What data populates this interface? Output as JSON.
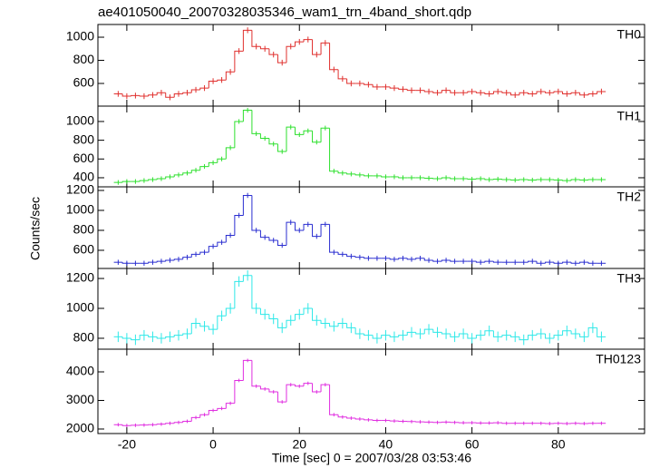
{
  "chart_data": {
    "type": "step",
    "title": "ae401050040_20070328035346_wam1_trn_4band_short.qdp",
    "xlabel": "Time [sec] 0 = 2007/03/28 03:53:46",
    "ylabel": "Counts/sec",
    "x": [
      -22,
      -20,
      -18,
      -16,
      -14,
      -12,
      -10,
      -8,
      -6,
      -4,
      -2,
      0,
      2,
      4,
      6,
      8,
      10,
      12,
      14,
      16,
      18,
      20,
      22,
      24,
      26,
      28,
      30,
      32,
      34,
      36,
      38,
      40,
      42,
      44,
      46,
      48,
      50,
      52,
      54,
      56,
      58,
      60,
      62,
      64,
      66,
      68,
      70,
      72,
      74,
      76,
      78,
      80,
      82,
      84,
      86,
      88,
      90
    ],
    "xlim": [
      -26.7,
      100
    ],
    "xticks": [
      -20,
      0,
      20,
      40,
      60,
      80
    ],
    "panels": [
      {
        "name": "TH0",
        "color": "#e0302e",
        "error": 25,
        "ylim": [
          404,
          1110
        ],
        "yticks": [
          600,
          800,
          1000
        ],
        "values": [
          510,
          490,
          495,
          490,
          500,
          520,
          480,
          510,
          520,
          545,
          560,
          620,
          630,
          700,
          880,
          1060,
          920,
          900,
          850,
          780,
          920,
          960,
          980,
          850,
          950,
          720,
          640,
          600,
          600,
          590,
          570,
          570,
          560,
          550,
          540,
          540,
          530,
          520,
          540,
          520,
          520,
          530,
          520,
          510,
          530,
          520,
          500,
          520,
          510,
          530,
          520,
          530,
          510,
          520,
          500,
          510,
          530
        ]
      },
      {
        "name": "TH1",
        "color": "#2ee02e",
        "error": 25,
        "ylim": [
          303,
          1164
        ],
        "yticks": [
          400,
          600,
          800,
          1000
        ],
        "values": [
          350,
          360,
          360,
          370,
          380,
          390,
          410,
          430,
          450,
          480,
          520,
          560,
          600,
          720,
          1000,
          1120,
          870,
          820,
          760,
          680,
          940,
          860,
          900,
          780,
          930,
          470,
          450,
          440,
          430,
          420,
          420,
          410,
          410,
          400,
          400,
          400,
          395,
          390,
          400,
          390,
          390,
          385,
          390,
          380,
          385,
          380,
          375,
          380,
          375,
          380,
          380,
          375,
          370,
          380,
          375,
          380,
          380
        ]
      },
      {
        "name": "TH2",
        "color": "#2a2ed0",
        "error": 25,
        "ylim": [
          418,
          1236
        ],
        "yticks": [
          600,
          800,
          1000,
          1200
        ],
        "values": [
          480,
          470,
          470,
          470,
          480,
          490,
          500,
          510,
          530,
          560,
          580,
          640,
          680,
          750,
          950,
          1150,
          800,
          730,
          700,
          650,
          880,
          800,
          860,
          740,
          860,
          580,
          560,
          540,
          530,
          520,
          520,
          520,
          510,
          520,
          510,
          520,
          500,
          490,
          500,
          490,
          490,
          490,
          480,
          490,
          480,
          480,
          480,
          480,
          490,
          470,
          480,
          470,
          480,
          470,
          480,
          470,
          470
        ]
      },
      {
        "name": "TH3",
        "color": "#2ee8e8",
        "error": 35,
        "ylim": [
          727,
          1267
        ],
        "yticks": [
          800,
          1000,
          1200
        ],
        "values": [
          810,
          800,
          790,
          820,
          810,
          800,
          810,
          820,
          830,
          900,
          880,
          860,
          950,
          1000,
          1180,
          1220,
          1000,
          960,
          930,
          870,
          920,
          960,
          1000,
          920,
          900,
          880,
          900,
          870,
          830,
          820,
          800,
          820,
          810,
          820,
          840,
          830,
          860,
          840,
          830,
          810,
          830,
          800,
          820,
          850,
          810,
          820,
          810,
          790,
          820,
          830,
          800,
          820,
          850,
          830,
          810,
          870,
          810
        ]
      },
      {
        "name": "TH0123",
        "color": "#e02ee0",
        "error": 60,
        "ylim": [
          1841,
          4794
        ],
        "yticks": [
          2000,
          3000,
          4000
        ],
        "values": [
          2150,
          2120,
          2130,
          2140,
          2150,
          2170,
          2200,
          2230,
          2270,
          2400,
          2500,
          2650,
          2720,
          2900,
          3700,
          4400,
          3500,
          3400,
          3300,
          2950,
          3550,
          3500,
          3600,
          3300,
          3550,
          2500,
          2420,
          2380,
          2350,
          2320,
          2300,
          2300,
          2280,
          2270,
          2260,
          2250,
          2240,
          2230,
          2240,
          2230,
          2220,
          2220,
          2210,
          2210,
          2220,
          2200,
          2200,
          2200,
          2200,
          2200,
          2190,
          2200,
          2190,
          2200,
          2190,
          2200,
          2200
        ]
      }
    ]
  }
}
